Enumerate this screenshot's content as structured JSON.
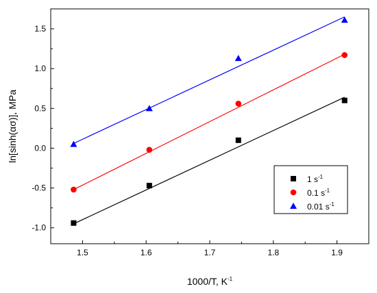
{
  "chart_data": {
    "type": "scatter",
    "xlabel": "1000/T, K",
    "xlabel_sup": "-1",
    "ylabel": "ln[sinh(ασ)], MPa",
    "xlim": [
      1.45,
      1.95
    ],
    "ylim": [
      -1.2,
      1.75
    ],
    "x_ticks": [
      1.5,
      1.6,
      1.7,
      1.8,
      1.9
    ],
    "x_tick_labels": [
      "1.5",
      "1.6",
      "1.7",
      "1.8",
      "1.9"
    ],
    "y_ticks": [
      -1.0,
      -0.5,
      0.0,
      0.5,
      1.0,
      1.5
    ],
    "y_tick_labels": [
      "-1.0",
      "-0.5",
      "0.0",
      "0.5",
      "1.0",
      "1.5"
    ],
    "grid": false,
    "legend_position": "bottom-right",
    "series": [
      {
        "name": "1 s",
        "name_sup": "-1",
        "marker": "square",
        "color": "#000000",
        "x": [
          1.486,
          1.605,
          1.745,
          1.912
        ],
        "y": [
          -0.94,
          -0.47,
          0.1,
          0.6
        ],
        "fit": {
          "x": [
            1.486,
            1.912
          ],
          "y": [
            -0.95,
            0.64
          ]
        }
      },
      {
        "name": "0.1 s",
        "name_sup": "-1",
        "marker": "circle",
        "color": "#ff0000",
        "x": [
          1.486,
          1.605,
          1.745,
          1.912
        ],
        "y": [
          -0.52,
          -0.02,
          0.56,
          1.17
        ],
        "fit": {
          "x": [
            1.486,
            1.912
          ],
          "y": [
            -0.52,
            1.18
          ]
        }
      },
      {
        "name": "0.01 s",
        "name_sup": "-1",
        "marker": "triangle",
        "color": "#0000ff",
        "x": [
          1.486,
          1.605,
          1.745,
          1.912
        ],
        "y": [
          0.05,
          0.5,
          1.13,
          1.61
        ],
        "fit": {
          "x": [
            1.486,
            1.912
          ],
          "y": [
            0.06,
            1.65
          ]
        }
      }
    ]
  }
}
